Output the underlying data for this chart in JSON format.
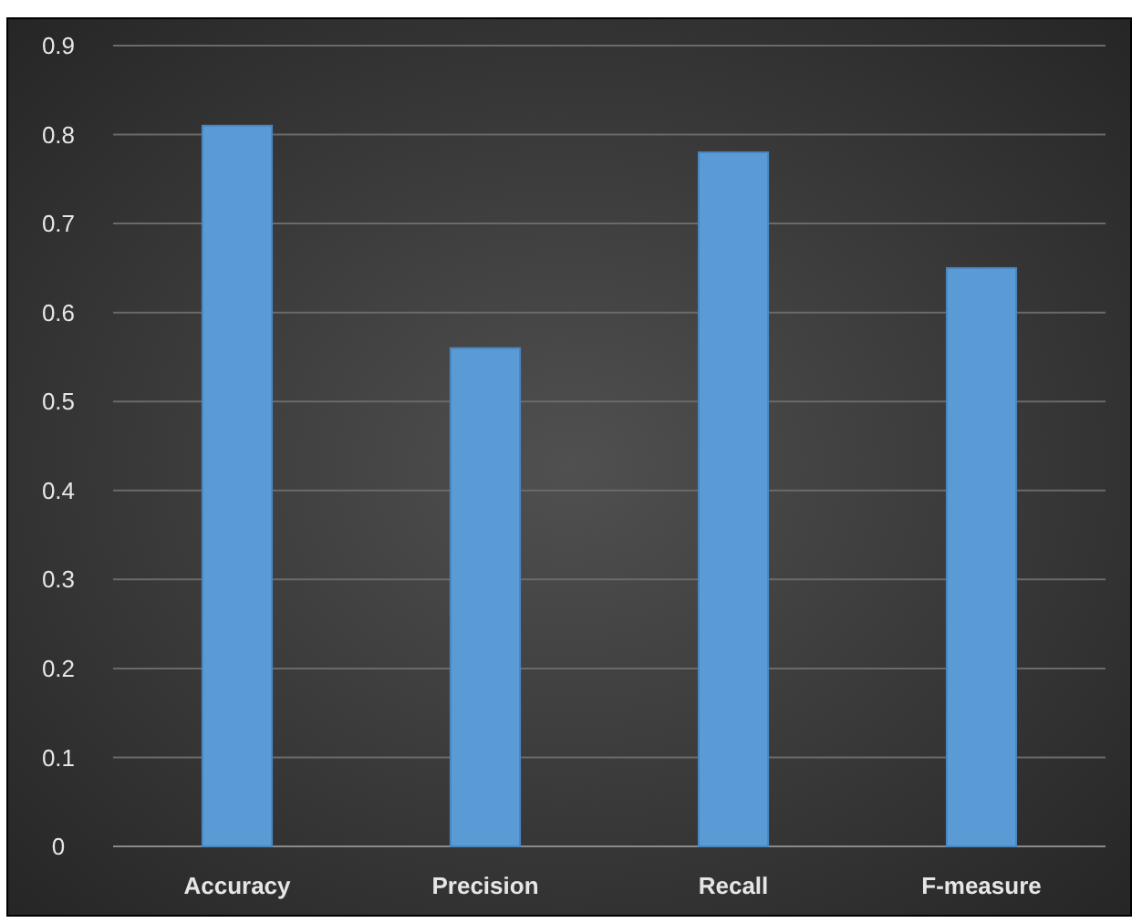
{
  "chart_data": {
    "type": "bar",
    "categories": [
      "Accuracy",
      "Precision",
      "Recall",
      "F-measure"
    ],
    "values": [
      0.81,
      0.56,
      0.78,
      0.65
    ],
    "color": "#5b9bd5",
    "ylim": [
      0,
      0.9
    ],
    "yticks": [
      0,
      0.1,
      0.2,
      0.3,
      0.4,
      0.5,
      0.6,
      0.7,
      0.8,
      0.9
    ],
    "grid": "y"
  }
}
